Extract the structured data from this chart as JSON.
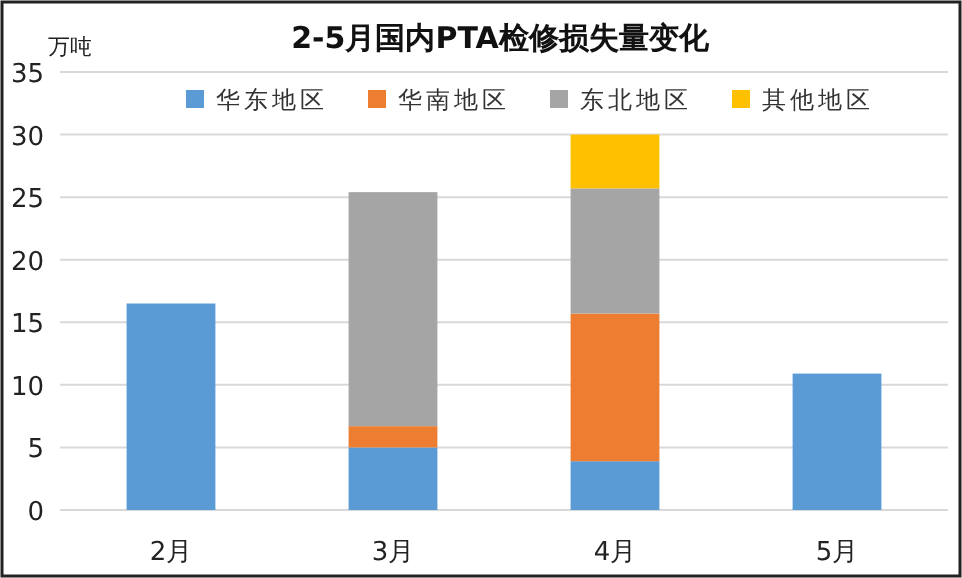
{
  "chart_data": {
    "type": "bar",
    "title": "2-5月国内PTA检修损失量变化",
    "ylabel": "万吨",
    "stacked": true,
    "categories": [
      "2月",
      "3月",
      "4月",
      "5月"
    ],
    "series": [
      {
        "name": "华东地区",
        "color": "#5b9bd5",
        "values": [
          16.5,
          5.0,
          3.9,
          10.9
        ]
      },
      {
        "name": "华南地区",
        "color": "#ed7d31",
        "values": [
          null,
          1.7,
          11.8,
          null
        ]
      },
      {
        "name": "东北地区",
        "color": "#a5a5a5",
        "values": [
          null,
          18.7,
          10.0,
          null
        ]
      },
      {
        "name": "其他地区",
        "color": "#ffc000",
        "values": [
          null,
          null,
          4.3,
          null
        ]
      }
    ],
    "ylim": [
      0,
      35
    ],
    "yticks": [
      0,
      5,
      10,
      15,
      20,
      25,
      30,
      35
    ],
    "grid": "y",
    "legend": "top"
  }
}
